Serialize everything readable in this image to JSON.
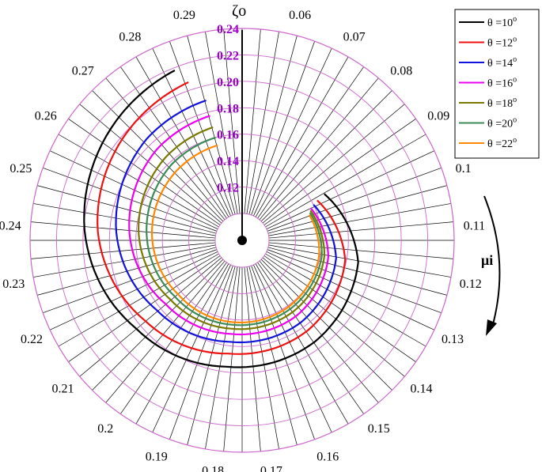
{
  "chart_data": {
    "type": "polar-line",
    "radial_axis_label": "ζo",
    "angular_axis_label": "μi",
    "radial_ticks": [
      "0.12",
      "0.14",
      "0.16",
      "0.18",
      "0.20",
      "0.22",
      "0.24"
    ],
    "radial_range": [
      0.1,
      0.24
    ],
    "radial_tick_color": "#9900cc",
    "ring_color": "#cc66cc",
    "angular_ticks": [
      "0.06",
      "0.07",
      "0.08",
      "0.09",
      "0.1",
      "0.11",
      "0.12",
      "0.13",
      "0.14",
      "0.15",
      "0.16",
      "0.17",
      "0.18",
      "0.19",
      "0.2",
      "0.21",
      "0.22",
      "0.23",
      "0.24",
      "0.25",
      "0.26",
      "0.27",
      "0.28",
      "0.29"
    ],
    "angular_range": [
      0.05,
      0.3
    ],
    "direction": "clockwise",
    "zero_angle": "top",
    "grid": true,
    "legend_position": "top-right",
    "series": [
      {
        "name": "θ =10",
        "superscript": "o",
        "color": "#000000",
        "mu": [
          0.092,
          0.12,
          0.15,
          0.18,
          0.21,
          0.24,
          0.27,
          0.285
        ],
        "zeta": [
          0.151,
          0.169,
          0.174,
          0.176,
          0.184,
          0.199,
          0.212,
          0.218
        ]
      },
      {
        "name": "θ =12",
        "superscript": "o",
        "color": "#ee1111",
        "mu": [
          0.093,
          0.12,
          0.15,
          0.18,
          0.21,
          0.24,
          0.27,
          0.287
        ],
        "zeta": [
          0.144,
          0.159,
          0.164,
          0.166,
          0.175,
          0.189,
          0.2,
          0.206
        ]
      },
      {
        "name": "θ =14",
        "superscript": "o",
        "color": "#1111dd",
        "mu": [
          0.094,
          0.12,
          0.15,
          0.18,
          0.21,
          0.24,
          0.27,
          0.29
        ],
        "zeta": [
          0.14,
          0.152,
          0.156,
          0.157,
          0.163,
          0.175,
          0.185,
          0.189
        ]
      },
      {
        "name": "θ =16",
        "superscript": "o",
        "color": "#ee00ee",
        "mu": [
          0.095,
          0.12,
          0.15,
          0.18,
          0.21,
          0.24,
          0.27,
          0.29
        ],
        "zeta": [
          0.137,
          0.146,
          0.15,
          0.151,
          0.155,
          0.165,
          0.174,
          0.177
        ]
      },
      {
        "name": "θ =18",
        "superscript": "o",
        "color": "#7a7a00",
        "mu": [
          0.096,
          0.12,
          0.15,
          0.18,
          0.21,
          0.24,
          0.27,
          0.29
        ],
        "zeta": [
          0.136,
          0.143,
          0.146,
          0.147,
          0.15,
          0.158,
          0.165,
          0.168
        ]
      },
      {
        "name": "θ =20",
        "superscript": "o",
        "color": "#3d8b57",
        "mu": [
          0.097,
          0.12,
          0.15,
          0.18,
          0.21,
          0.24,
          0.27,
          0.29
        ],
        "zeta": [
          0.135,
          0.141,
          0.143,
          0.144,
          0.146,
          0.152,
          0.158,
          0.16
        ]
      },
      {
        "name": "θ =22",
        "superscript": "o",
        "color": "#ff8800",
        "mu": [
          0.098,
          0.12,
          0.15,
          0.18,
          0.21,
          0.24,
          0.27,
          0.29
        ],
        "zeta": [
          0.134,
          0.139,
          0.141,
          0.142,
          0.143,
          0.148,
          0.152,
          0.154
        ]
      }
    ]
  }
}
